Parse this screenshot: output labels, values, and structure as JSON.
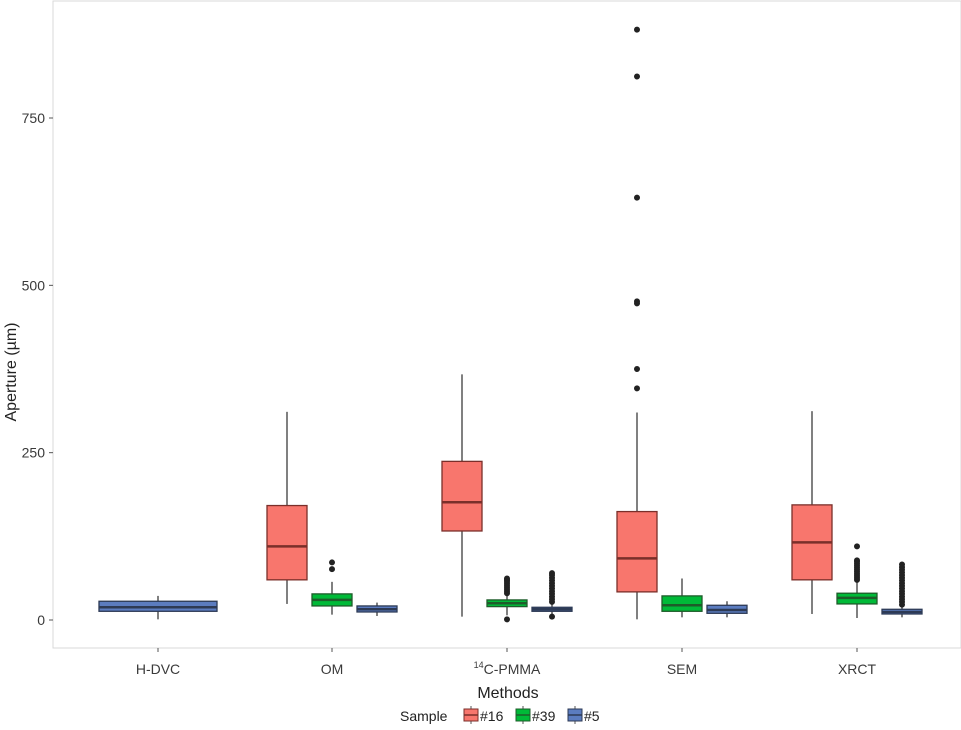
{
  "chart_data": {
    "type": "boxplot",
    "title": "",
    "xlabel": "Methods",
    "ylabel": "Aperture (µm)",
    "ylim": [
      -45,
      925
    ],
    "yticks": [
      0,
      250,
      500,
      750
    ],
    "grid": false,
    "categories": [
      {
        "label": "H-DVC",
        "sup": ""
      },
      {
        "label": "C-PMMA",
        "sup": "14"
      },
      {
        "label": "OM",
        "sup": ""
      },
      {
        "label": "SEM",
        "sup": ""
      },
      {
        "label": "XRCT",
        "sup": ""
      }
    ],
    "category_order": [
      "H-DVC",
      "OM",
      "C-PMMA",
      "SEM",
      "XRCT"
    ],
    "legend": {
      "title": "Sample",
      "placement": "bottom",
      "entries": [
        {
          "name": "#16",
          "color": "#F8766D"
        },
        {
          "name": "#39",
          "color": "#00BA38"
        },
        {
          "name": "#5",
          "color": "#619CFF"
        }
      ]
    },
    "series": [
      {
        "name": "#16",
        "color": "#F8766D",
        "boxes": [
          {
            "category": "OM",
            "whisker_low": 24,
            "q1": 60,
            "median": 110,
            "q3": 171,
            "whisker_high": 311,
            "outliers": []
          },
          {
            "category": "C-PMMA",
            "whisker_low": 5,
            "q1": 133,
            "median": 176,
            "q3": 237,
            "whisker_high": 367,
            "outliers": []
          },
          {
            "category": "SEM",
            "whisker_low": 1,
            "q1": 42,
            "median": 92,
            "q3": 162,
            "whisker_high": 310,
            "outliers": [
              346,
              375,
              473,
              476,
              631,
              812,
              882
            ]
          },
          {
            "category": "XRCT",
            "whisker_low": 9,
            "q1": 60,
            "median": 116,
            "q3": 172,
            "whisker_high": 312,
            "outliers": []
          }
        ]
      },
      {
        "name": "#39",
        "color": "#00BA38",
        "boxes": [
          {
            "category": "OM",
            "whisker_low": 8,
            "q1": 21,
            "median": 30,
            "q3": 39,
            "whisker_high": 57,
            "outliers": [
              76,
              86
            ]
          },
          {
            "category": "C-PMMA",
            "whisker_low": 7,
            "q1": 20,
            "median": 25,
            "q3": 30,
            "whisker_high": 36,
            "outliers": [
              1,
              40,
              43,
              46,
              49,
              52,
              55,
              58,
              60,
              62
            ]
          },
          {
            "category": "SEM",
            "whisker_low": 4,
            "q1": 13,
            "median": 22,
            "q3": 36,
            "whisker_high": 62,
            "outliers": []
          },
          {
            "category": "XRCT",
            "whisker_low": 3,
            "q1": 24,
            "median": 33,
            "q3": 40,
            "whisker_high": 58,
            "outliers": [
              60,
              63,
              66,
              69,
              72,
              75,
              78,
              81,
              84,
              87,
              89,
              110
            ]
          }
        ]
      },
      {
        "name": "#5",
        "color": "#619CFF",
        "boxes": [
          {
            "category": "H-DVC",
            "whisker_low": 1,
            "q1": 13,
            "median": 19,
            "q3": 28,
            "whisker_high": 36,
            "outliers": []
          },
          {
            "category": "OM",
            "whisker_low": 6,
            "q1": 12,
            "median": 16,
            "q3": 21,
            "whisker_high": 26,
            "outliers": []
          },
          {
            "category": "C-PMMA",
            "whisker_low": 8,
            "q1": 13,
            "median": 16,
            "q3": 19,
            "whisker_high": 24,
            "outliers": [
              5,
              27,
              31,
              35,
              39,
              43,
              47,
              51,
              55,
              59,
              63,
              67,
              70
            ]
          },
          {
            "category": "SEM",
            "whisker_low": 4,
            "q1": 10,
            "median": 15,
            "q3": 22,
            "whisker_high": 28,
            "outliers": []
          },
          {
            "category": "XRCT",
            "whisker_low": 4,
            "q1": 9,
            "median": 12,
            "q3": 16,
            "whisker_high": 21,
            "outliers": [
              23,
              27,
              31,
              35,
              39,
              43,
              47,
              51,
              55,
              59,
              63,
              67,
              71,
              75,
              79,
              83
            ]
          }
        ]
      }
    ]
  }
}
